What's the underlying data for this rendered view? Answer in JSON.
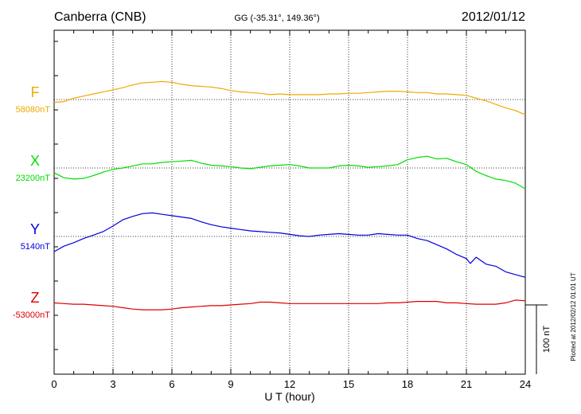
{
  "header": {
    "station": "Canberra (CNB)",
    "coords": "GG (-35.31°, 149.36°)",
    "date": "2012/01/12"
  },
  "chart_data": {
    "type": "line",
    "xlabel": "U T (hour)",
    "xlim": [
      0,
      24
    ],
    "x_ticks": [
      "0",
      "3",
      "6",
      "9",
      "12",
      "15",
      "18",
      "21",
      "24"
    ],
    "grid": true,
    "scale_bar_label": "100 nT",
    "footer_note": "Plotted at 2012/02/12 01:01 UT",
    "series": [
      {
        "name": "F",
        "baseline_label": "58080nT",
        "baseline_nT": 58080,
        "color": "#f0a800",
        "hours": [
          0,
          0.5,
          1,
          1.5,
          2,
          2.5,
          3,
          3.5,
          4,
          4.5,
          5,
          5.5,
          6,
          6.5,
          7,
          7.5,
          8,
          8.5,
          9,
          9.5,
          10,
          10.5,
          11,
          11.5,
          12,
          12.5,
          13,
          13.5,
          14,
          14.5,
          15,
          15.5,
          16,
          16.5,
          17,
          17.5,
          18,
          18.5,
          19,
          19.5,
          20,
          20.5,
          21,
          21.5,
          22,
          22.5,
          23,
          23.5,
          24
        ],
        "values": [
          58076,
          58077,
          58082,
          58085,
          58088,
          58091,
          58094,
          58097,
          58101,
          58104,
          58105,
          58106,
          58105,
          58102,
          58100,
          58099,
          58098,
          58096,
          58093,
          58091,
          58090,
          58089,
          58087,
          58088,
          58087,
          58087,
          58087,
          58087,
          58088,
          58088,
          58089,
          58089,
          58090,
          58091,
          58092,
          58092,
          58091,
          58090,
          58090,
          58088,
          58088,
          58087,
          58086,
          58082,
          58078,
          58073,
          58068,
          58064,
          58058
        ]
      },
      {
        "name": "X",
        "baseline_label": "23200nT",
        "baseline_nT": 23200,
        "color": "#00dd00",
        "hours": [
          0,
          0.5,
          1,
          1.5,
          2,
          2.5,
          3,
          3.5,
          4,
          4.5,
          5,
          5.5,
          6,
          6.5,
          7,
          7.5,
          8,
          8.5,
          9,
          9.5,
          10,
          10.5,
          11,
          11.5,
          12,
          12.5,
          13,
          13.5,
          14,
          14.5,
          15,
          15.5,
          16,
          16.5,
          17,
          17.5,
          18,
          18.5,
          19,
          19.5,
          20,
          20.5,
          21,
          21.5,
          22,
          22.5,
          23,
          23.5,
          24
        ],
        "values": [
          23193,
          23186,
          23184,
          23185,
          23189,
          23194,
          23198,
          23200,
          23203,
          23206,
          23206,
          23208,
          23209,
          23210,
          23211,
          23207,
          23204,
          23203,
          23202,
          23200,
          23199,
          23201,
          23203,
          23204,
          23205,
          23203,
          23200,
          23200,
          23200,
          23203,
          23204,
          23203,
          23201,
          23202,
          23203,
          23205,
          23212,
          23215,
          23217,
          23213,
          23214,
          23209,
          23205,
          23195,
          23189,
          23184,
          23182,
          23178,
          23170
        ]
      },
      {
        "name": "Y",
        "baseline_label": "5140nT",
        "baseline_nT": 5140,
        "color": "#0000dd",
        "hours": [
          0,
          0.5,
          1,
          1.5,
          2,
          2.5,
          3,
          3.5,
          4,
          4.5,
          5,
          5.5,
          6,
          6.5,
          7,
          7.5,
          8,
          8.5,
          9,
          9.5,
          10,
          10.5,
          11,
          11.5,
          12,
          12.5,
          13,
          13.5,
          14,
          14.5,
          15,
          15.5,
          16,
          16.5,
          17,
          17.5,
          18,
          18.5,
          19,
          19.5,
          20,
          20.5,
          21,
          21.2,
          21.5,
          22,
          22.5,
          23,
          23.5,
          24
        ],
        "values": [
          5118,
          5126,
          5131,
          5137,
          5142,
          5147,
          5155,
          5164,
          5169,
          5173,
          5174,
          5172,
          5170,
          5168,
          5166,
          5161,
          5157,
          5154,
          5152,
          5150,
          5148,
          5147,
          5146,
          5145,
          5143,
          5141,
          5140,
          5142,
          5143,
          5144,
          5143,
          5142,
          5142,
          5144,
          5143,
          5142,
          5142,
          5137,
          5134,
          5128,
          5122,
          5114,
          5108,
          5101,
          5110,
          5100,
          5097,
          5089,
          5085,
          5081
        ]
      },
      {
        "name": "Z",
        "baseline_label": "-53000nT",
        "baseline_nT": -53000,
        "color": "#dd0000",
        "hours": [
          0,
          0.5,
          1,
          1.5,
          2,
          2.5,
          3,
          3.5,
          4,
          4.5,
          5,
          5.5,
          6,
          6.5,
          7,
          7.5,
          8,
          8.5,
          9,
          9.5,
          10,
          10.5,
          11,
          11.5,
          12,
          12.5,
          13,
          13.5,
          14,
          14.5,
          15,
          15.5,
          16,
          16.5,
          17,
          17.5,
          18,
          18.5,
          19,
          19.5,
          20,
          20.5,
          21,
          21.5,
          22,
          22.5,
          23,
          23.5,
          24
        ],
        "values": [
          -52997,
          -52998,
          -52999,
          -52999,
          -53000,
          -53001,
          -53002,
          -53004,
          -53006,
          -53007,
          -53007,
          -53007,
          -53006,
          -53004,
          -53003,
          -53002,
          -53001,
          -53001,
          -53000,
          -52999,
          -52998,
          -52996,
          -52996,
          -52997,
          -52998,
          -52998,
          -52998,
          -52998,
          -52998,
          -52998,
          -52998,
          -52998,
          -52998,
          -52998,
          -52997,
          -52997,
          -52996,
          -52995,
          -52995,
          -52995,
          -52997,
          -52997,
          -52998,
          -52999,
          -52999,
          -52999,
          -52997,
          -52993,
          -52994
        ]
      }
    ]
  }
}
